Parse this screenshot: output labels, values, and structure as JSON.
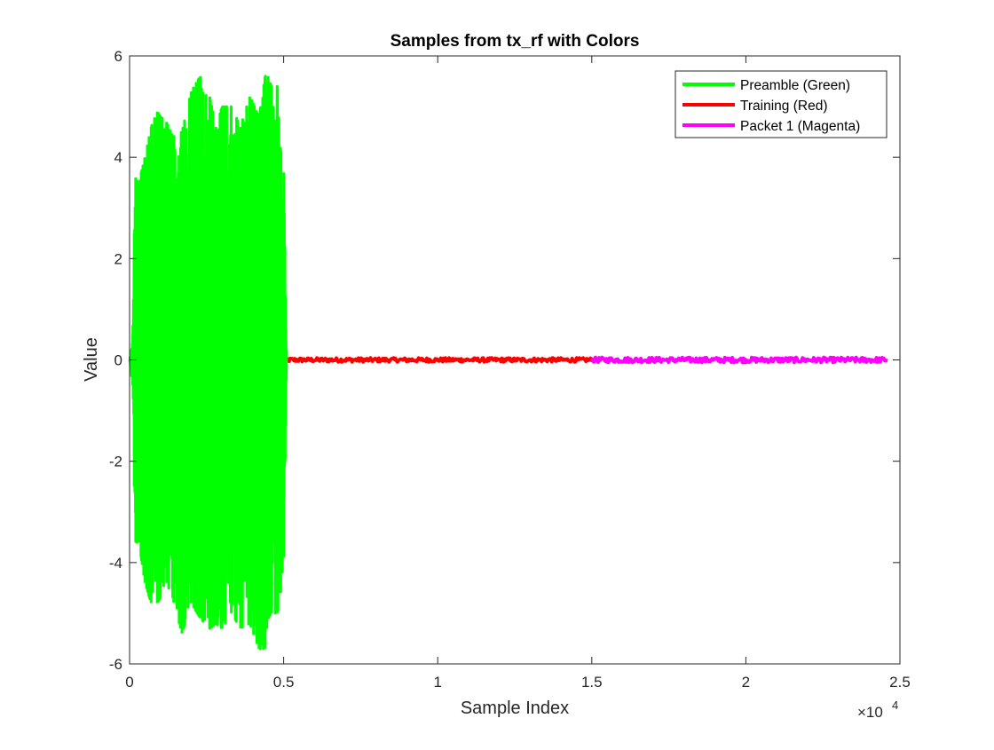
{
  "chart_data": {
    "type": "line",
    "title": "Samples from tx_rf with Colors",
    "xlabel": "Sample Index",
    "ylabel": "Value",
    "xlim": [
      0,
      25000
    ],
    "ylim": [
      -6,
      6
    ],
    "x_exponent_label": "×10",
    "x_exponent_power": "4",
    "x_ticks": [
      0,
      5000,
      10000,
      15000,
      20000,
      25000
    ],
    "x_tick_labels": [
      "0",
      "0.5",
      "1",
      "1.5",
      "2",
      "2.5"
    ],
    "y_ticks": [
      -6,
      -4,
      -2,
      0,
      2,
      4,
      6
    ],
    "y_tick_labels": [
      "-6",
      "-4",
      "-2",
      "0",
      "2",
      "4",
      "6"
    ],
    "grid": false,
    "legend_position": "top-right",
    "series": [
      {
        "name": "Preamble (Green)",
        "color": "#00ff00",
        "x_range": [
          0,
          5000
        ],
        "envelope": {
          "x": [
            0,
            100,
            150,
            200,
            300,
            500,
            700,
            900,
            1000,
            1200,
            1400,
            1700,
            2000,
            2300,
            2600,
            2800,
            3000,
            3300,
            3600,
            3900,
            4200,
            4400,
            4500,
            4600,
            4800,
            4900,
            5000,
            5100
          ],
          "max": [
            0,
            0.5,
            2.5,
            3.6,
            3.5,
            4.0,
            4.6,
            4.9,
            4.8,
            4.7,
            4.4,
            4.5,
            5.3,
            5.6,
            5.2,
            4.6,
            5.0,
            5.0,
            4.6,
            5.2,
            4.8,
            5.6,
            5.6,
            5.4,
            5.4,
            4.2,
            3.7,
            0
          ],
          "min": [
            0,
            -0.5,
            -2.5,
            -3.6,
            -3.6,
            -4.4,
            -4.8,
            -4.8,
            -4.7,
            -4.4,
            -4.7,
            -5.4,
            -4.8,
            -5.1,
            -5.3,
            -5.2,
            -5.3,
            -5.0,
            -5.3,
            -5.2,
            -5.7,
            -5.7,
            -5.1,
            -5.0,
            -5.0,
            -4.6,
            -3.9,
            0
          ]
        }
      },
      {
        "name": "Training (Red)",
        "color": "#ff0000",
        "x_range": [
          5000,
          15000
        ],
        "amplitude": 0.04
      },
      {
        "name": "Packet 1 (Magenta)",
        "color": "#ff00ff",
        "x_range": [
          15000,
          24600
        ],
        "amplitude": 0.05
      }
    ]
  }
}
